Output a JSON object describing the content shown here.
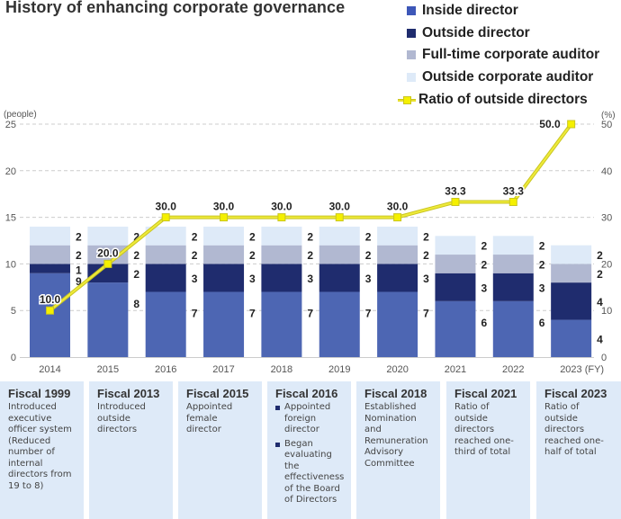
{
  "colors": {
    "inside_director": "#4d66b3",
    "outside_director": "#1f2c6e",
    "fulltime_auditor": "#b1b8d1",
    "outside_auditor": "#deeaf8",
    "ratio_line": "#eeea3a",
    "ratio_marker": "#f5f000",
    "note_bg": "#deeaf8"
  },
  "legend": [
    {
      "label": "Inside director",
      "color": "#3d57b8",
      "kind": "square"
    },
    {
      "label": "Outside director",
      "color": "#1f2c6e",
      "kind": "square"
    },
    {
      "label": "Full-time corporate auditor",
      "color": "#b1b8d1",
      "kind": "square"
    },
    {
      "label": "Outside corporate auditor",
      "color": "#deeaf8",
      "kind": "square"
    },
    {
      "label": "Ratio of outside directors",
      "color": "#f5f000",
      "kind": "line"
    }
  ],
  "chart_data": {
    "type": "bar",
    "stacked": true,
    "title": "History of enhancing corporate governance",
    "categories": [
      "2014",
      "2015",
      "2016",
      "2017",
      "2018",
      "2019",
      "2020",
      "2021",
      "2022",
      "2023"
    ],
    "x_suffix_last": "(FY)",
    "ylabel": "(people)",
    "ylabel_right": "(%)",
    "ylim": [
      0,
      25
    ],
    "yticks": [
      0,
      5,
      10,
      15,
      20,
      25
    ],
    "ylim_right": [
      0,
      50
    ],
    "yticks_right": [
      0,
      10,
      20,
      30,
      40,
      50
    ],
    "grid": true,
    "series": [
      {
        "name": "Inside director",
        "values": [
          9,
          8,
          7,
          7,
          7,
          7,
          7,
          6,
          6,
          4
        ]
      },
      {
        "name": "Outside director",
        "values": [
          1,
          2,
          3,
          3,
          3,
          3,
          3,
          3,
          3,
          4
        ]
      },
      {
        "name": "Full-time corporate auditor",
        "values": [
          2,
          2,
          2,
          2,
          2,
          2,
          2,
          2,
          2,
          2
        ]
      },
      {
        "name": "Outside corporate auditor",
        "values": [
          2,
          2,
          2,
          2,
          2,
          2,
          2,
          2,
          2,
          2
        ]
      }
    ],
    "line_series": {
      "name": "Ratio of outside directors",
      "axis": "right",
      "values": [
        10.0,
        20.0,
        30.0,
        30.0,
        30.0,
        30.0,
        30.0,
        33.3,
        33.3,
        50.0
      ],
      "labels": [
        "10.0",
        "20.0",
        "30.0",
        "30.0",
        "30.0",
        "30.0",
        "30.0",
        "33.3",
        "33.3",
        "50.0"
      ]
    },
    "legend_position": "top-right"
  },
  "notes": [
    {
      "title": "Fiscal 1999",
      "text": "Introduced executive officer system (Reduced number of internal directors from 19 to 8)"
    },
    {
      "title": "Fiscal 2013",
      "text": "Introduced outside directors"
    },
    {
      "title": "Fiscal 2015",
      "text": "Appointed female director"
    },
    {
      "title": "Fiscal 2016",
      "items": [
        "Appointed foreign director",
        "Began evaluating the effectiveness of the Board of Directors"
      ]
    },
    {
      "title": "Fiscal 2018",
      "text": "Established Nomination and Remuneration Advisory Committee"
    },
    {
      "title": "Fiscal 2021",
      "text": "Ratio of outside directors reached one-third of total"
    },
    {
      "title": "Fiscal 2023",
      "text": "Ratio of outside directors reached one-half of total"
    }
  ]
}
